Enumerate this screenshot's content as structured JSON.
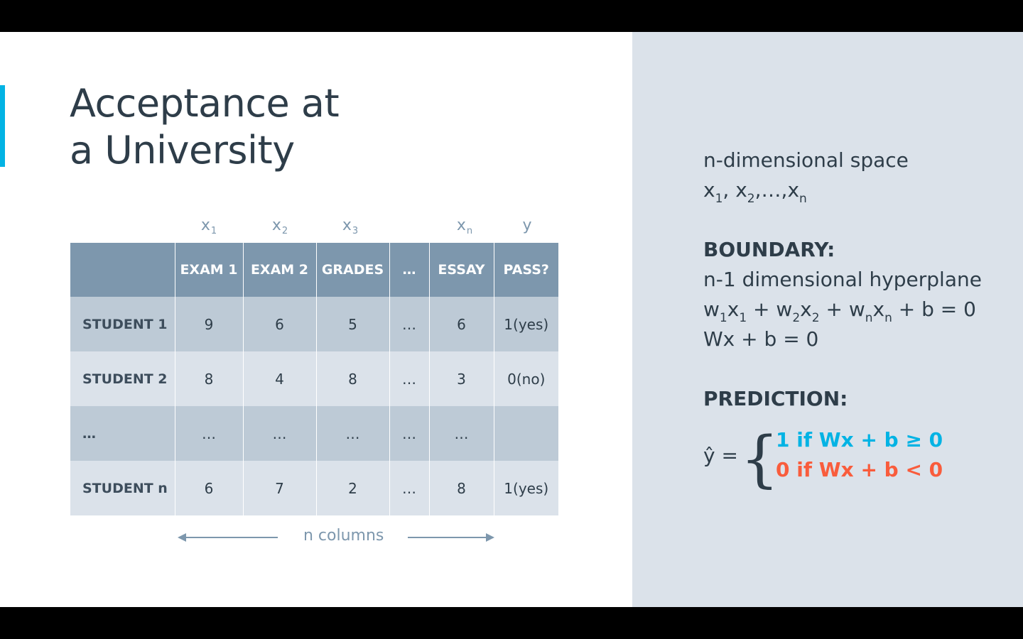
{
  "slide": {
    "title_line1": "Acceptance at",
    "title_line2": "a University",
    "colors": {
      "accent": "#02b3e4",
      "header": "#7d97ad",
      "positive": "#02b3e4",
      "negative": "#f95c3c",
      "panel": "#dbe2ea",
      "text": "#2e3d49"
    }
  },
  "table": {
    "column_symbols": [
      {
        "base": "x",
        "sub": "1"
      },
      {
        "base": "x",
        "sub": "2"
      },
      {
        "base": "x",
        "sub": "3"
      },
      {
        "base": "x",
        "sub": "n"
      },
      {
        "base": "y",
        "sub": ""
      }
    ],
    "headers": [
      "",
      "EXAM 1",
      "EXAM 2",
      "GRADES",
      "…",
      "ESSAY",
      "PASS?"
    ],
    "rows": [
      [
        "STUDENT 1",
        "9",
        "6",
        "5",
        "…",
        "6",
        "1(yes)"
      ],
      [
        "STUDENT 2",
        "8",
        "4",
        "8",
        "…",
        "3",
        "0(no)"
      ],
      [
        "…",
        "…",
        "…",
        "…",
        "…",
        "…",
        ""
      ],
      [
        "STUDENT n",
        "6",
        "7",
        "2",
        "…",
        "8",
        "1(yes)"
      ]
    ],
    "n_columns_label": "n columns"
  },
  "panel": {
    "space_label": "n-dimensional space",
    "vars": {
      "x": "x",
      "s1": "1",
      "s2": "2",
      "ellipsis": "…",
      "sn": "n"
    },
    "boundary_heading": "BOUNDARY:",
    "hyperplane_label": "n-1 dimensional hyperplane",
    "equation": {
      "w": "w",
      "x": "x",
      "s1": "1",
      "s2": "2",
      "sn": "n",
      "plus": " + ",
      "tail": " + b = 0"
    },
    "vector_equation": "Wx + b = 0",
    "prediction_heading": "PREDICTION:",
    "yhat": "ŷ =",
    "brace": "{",
    "case_positive": "1 if Wx + b ≥ 0",
    "case_negative": "0 if Wx + b < 0"
  }
}
